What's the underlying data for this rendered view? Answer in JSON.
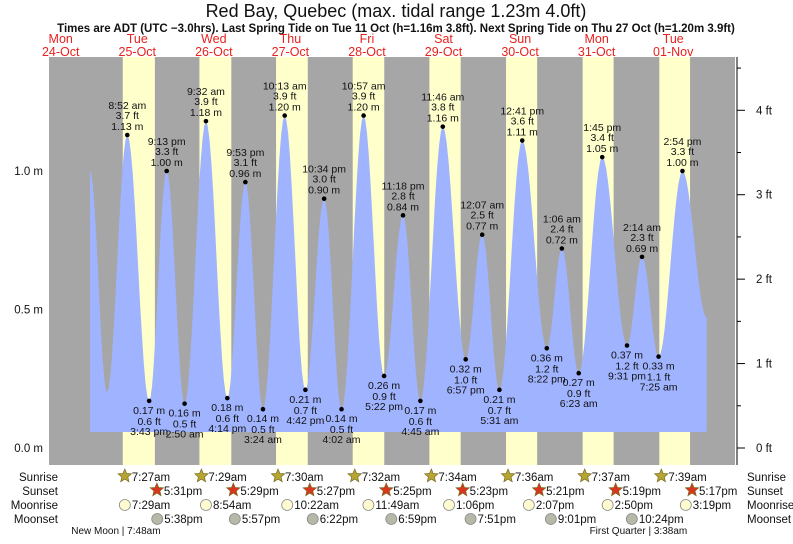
{
  "title": "Red Bay, Quebec (max. tidal range 1.23m 4.0ft)",
  "subtitle": "Times are ADT (UTC −3.0hrs). Last Spring Tide on Tue 11 Oct (h=1.16m 3.8ft). Next Spring Tide on Thu 27 Oct (h=1.20m 3.9ft)",
  "colors": {
    "night": "#a6a6a6",
    "day": "#ffffcc",
    "water": "#a0b3ff",
    "date": "#e8221e",
    "sunrise": "#b5a632",
    "sunset": "#d9361e",
    "moonrise": "#fffbd0",
    "moonset": "#b8b8a8"
  },
  "days": [
    {
      "dow": "Mon",
      "date": "24-Oct"
    },
    {
      "dow": "Tue",
      "date": "25-Oct"
    },
    {
      "dow": "Wed",
      "date": "26-Oct"
    },
    {
      "dow": "Thu",
      "date": "27-Oct"
    },
    {
      "dow": "Fri",
      "date": "28-Oct"
    },
    {
      "dow": "Sat",
      "date": "29-Oct"
    },
    {
      "dow": "Sun",
      "date": "30-Oct"
    },
    {
      "dow": "Mon",
      "date": "31-Oct"
    },
    {
      "dow": "Tue",
      "date": "01-Nov"
    }
  ],
  "chart_data": {
    "type": "area",
    "title": "Red Bay, Quebec (max. tidal range 1.23m 4.0ft)",
    "x_units": "hours since Tue 25-Oct 00:00 ADT",
    "left_axis": {
      "labels": [
        "0.0 m",
        "0.5 m",
        "1.0 m"
      ],
      "values": [
        0,
        0.5,
        1.0
      ]
    },
    "right_axis": {
      "labels": [
        "0 ft",
        "1 ft",
        "2 ft",
        "3 ft",
        "4 ft"
      ],
      "values": [
        0,
        1,
        2,
        3,
        4
      ]
    },
    "curve_start": {
      "t": -2.8,
      "m": 1.0
    },
    "curve_end": {
      "t": 190.5,
      "m": 0.47
    },
    "unlabeled_extrema": [
      {
        "t": 2.5,
        "m": 0.2
      }
    ],
    "tides": [
      {
        "type": "high",
        "t": 8.87,
        "time": "8:52 am",
        "ft": "3.7 ft",
        "m": 1.13,
        "m_label": "1.13 m"
      },
      {
        "type": "low",
        "t": 15.72,
        "time": "3:43 pm",
        "ft": "0.6 ft",
        "m": 0.17,
        "m_label": "0.17 m"
      },
      {
        "type": "high",
        "t": 21.22,
        "time": "9:13 pm",
        "ft": "3.3 ft",
        "m": 1.0,
        "m_label": "1.00 m"
      },
      {
        "type": "low",
        "t": 26.83,
        "time": "2:50 am",
        "ft": "0.5 ft",
        "m": 0.16,
        "m_label": "0.16 m"
      },
      {
        "type": "high",
        "t": 33.53,
        "time": "9:32 am",
        "ft": "3.9 ft",
        "m": 1.18,
        "m_label": "1.18 m"
      },
      {
        "type": "low",
        "t": 40.23,
        "time": "4:14 pm",
        "ft": "0.6 ft",
        "m": 0.18,
        "m_label": "0.18 m"
      },
      {
        "type": "high",
        "t": 45.88,
        "time": "9:53 pm",
        "ft": "3.1 ft",
        "m": 0.96,
        "m_label": "0.96 m"
      },
      {
        "type": "low",
        "t": 51.4,
        "time": "3:24 am",
        "ft": "0.5 ft",
        "m": 0.14,
        "m_label": "0.14 m"
      },
      {
        "type": "high",
        "t": 58.22,
        "time": "10:13 am",
        "ft": "3.9 ft",
        "m": 1.2,
        "m_label": "1.20 m"
      },
      {
        "type": "low",
        "t": 64.7,
        "time": "4:42 pm",
        "ft": "0.7 ft",
        "m": 0.21,
        "m_label": "0.21 m"
      },
      {
        "type": "high",
        "t": 70.57,
        "time": "10:34 pm",
        "ft": "3.0 ft",
        "m": 0.9,
        "m_label": "0.90 m"
      },
      {
        "type": "low",
        "t": 76.03,
        "time": "4:02 am",
        "ft": "0.5 ft",
        "m": 0.14,
        "m_label": "0.14 m"
      },
      {
        "type": "high",
        "t": 82.95,
        "time": "10:57 am",
        "ft": "3.9 ft",
        "m": 1.2,
        "m_label": "1.20 m"
      },
      {
        "type": "low",
        "t": 89.37,
        "time": "5:22 pm",
        "ft": "0.9 ft",
        "m": 0.26,
        "m_label": "0.26 m"
      },
      {
        "type": "high",
        "t": 95.3,
        "time": "11:18 pm",
        "ft": "2.8 ft",
        "m": 0.84,
        "m_label": "0.84 m"
      },
      {
        "type": "low",
        "t": 100.75,
        "time": "4:45 am",
        "ft": "0.6 ft",
        "m": 0.17,
        "m_label": "0.17 m"
      },
      {
        "type": "high",
        "t": 107.77,
        "time": "11:46 am",
        "ft": "3.8 ft",
        "m": 1.16,
        "m_label": "1.16 m"
      },
      {
        "type": "low",
        "t": 114.95,
        "time": "6:57 pm",
        "ft": "1.0 ft",
        "m": 0.32,
        "m_label": "0.32 m"
      },
      {
        "type": "high",
        "t": 120.12,
        "time": "12:07 am",
        "ft": "2.5 ft",
        "m": 0.77,
        "m_label": "0.77 m"
      },
      {
        "type": "low",
        "t": 125.52,
        "time": "5:31 am",
        "ft": "0.7 ft",
        "m": 0.21,
        "m_label": "0.21 m"
      },
      {
        "type": "high",
        "t": 132.68,
        "time": "12:41 pm",
        "ft": "3.6 ft",
        "m": 1.11,
        "m_label": "1.11 m"
      },
      {
        "type": "low",
        "t": 140.37,
        "time": "8:22 pm",
        "ft": "1.2 ft",
        "m": 0.36,
        "m_label": "0.36 m"
      },
      {
        "type": "high",
        "t": 145.1,
        "time": "1:06 am",
        "ft": "2.4 ft",
        "m": 0.72,
        "m_label": "0.72 m"
      },
      {
        "type": "low",
        "t": 150.38,
        "time": "6:23 am",
        "ft": "0.9 ft",
        "m": 0.27,
        "m_label": "0.27 m"
      },
      {
        "type": "high",
        "t": 157.75,
        "time": "1:45 pm",
        "ft": "3.4 ft",
        "m": 1.05,
        "m_label": "1.05 m"
      },
      {
        "type": "low",
        "t": 165.52,
        "time": "9:31 pm",
        "ft": "1.2 ft",
        "m": 0.37,
        "m_label": "0.37 m"
      },
      {
        "type": "high",
        "t": 170.23,
        "time": "2:14 am",
        "ft": "2.3 ft",
        "m": 0.69,
        "m_label": "0.69 m"
      },
      {
        "type": "low",
        "t": 175.42,
        "time": "7:25 am",
        "ft": "1.1 ft",
        "m": 0.33,
        "m_label": "0.33 m"
      },
      {
        "type": "high",
        "t": 182.9,
        "time": "2:54 pm",
        "ft": "3.3 ft",
        "m": 1.0,
        "m_label": "1.00 m"
      }
    ]
  },
  "rows": {
    "labels": {
      "sunrise": "Sunrise",
      "sunset": "Sunset",
      "moonrise": "Moonrise",
      "moonset": "Moonset"
    },
    "sunrise": [
      {
        "t": 7.45,
        "time": "7:27am"
      },
      {
        "t": 31.48,
        "time": "7:29am"
      },
      {
        "t": 55.5,
        "time": "7:30am"
      },
      {
        "t": 79.53,
        "time": "7:32am"
      },
      {
        "t": 103.57,
        "time": "7:34am"
      },
      {
        "t": 127.6,
        "time": "7:36am"
      },
      {
        "t": 151.62,
        "time": "7:37am"
      },
      {
        "t": 175.65,
        "time": "7:39am"
      }
    ],
    "sunset": [
      {
        "t": 17.52,
        "time": "5:31pm"
      },
      {
        "t": 41.48,
        "time": "5:29pm"
      },
      {
        "t": 65.45,
        "time": "5:27pm"
      },
      {
        "t": 89.42,
        "time": "5:25pm"
      },
      {
        "t": 113.38,
        "time": "5:23pm"
      },
      {
        "t": 137.35,
        "time": "5:21pm"
      },
      {
        "t": 161.32,
        "time": "5:19pm"
      },
      {
        "t": 185.28,
        "time": "5:17pm"
      }
    ],
    "moonrise": [
      {
        "t": 7.48,
        "time": "7:29am"
      },
      {
        "t": 32.9,
        "time": "8:54am"
      },
      {
        "t": 58.37,
        "time": "10:22am"
      },
      {
        "t": 83.82,
        "time": "11:49am"
      },
      {
        "t": 109.1,
        "time": "1:06pm"
      },
      {
        "t": 134.12,
        "time": "2:07pm"
      },
      {
        "t": 158.83,
        "time": "2:50pm"
      },
      {
        "t": 183.32,
        "time": "3:19pm"
      }
    ],
    "moonset": [
      {
        "t": 17.63,
        "time": "5:38pm"
      },
      {
        "t": 41.95,
        "time": "5:57pm"
      },
      {
        "t": 66.37,
        "time": "6:22pm"
      },
      {
        "t": 91.0,
        "time": "6:59pm"
      },
      {
        "t": 115.85,
        "time": "7:51pm"
      },
      {
        "t": 141.02,
        "time": "9:01pm"
      },
      {
        "t": 166.4,
        "time": "10:24pm"
      }
    ],
    "phases": [
      {
        "t": 7.8,
        "label": "New Moon | 7:48am"
      },
      {
        "t": 171.6,
        "label": "First Quarter | 3:38am"
      }
    ]
  }
}
